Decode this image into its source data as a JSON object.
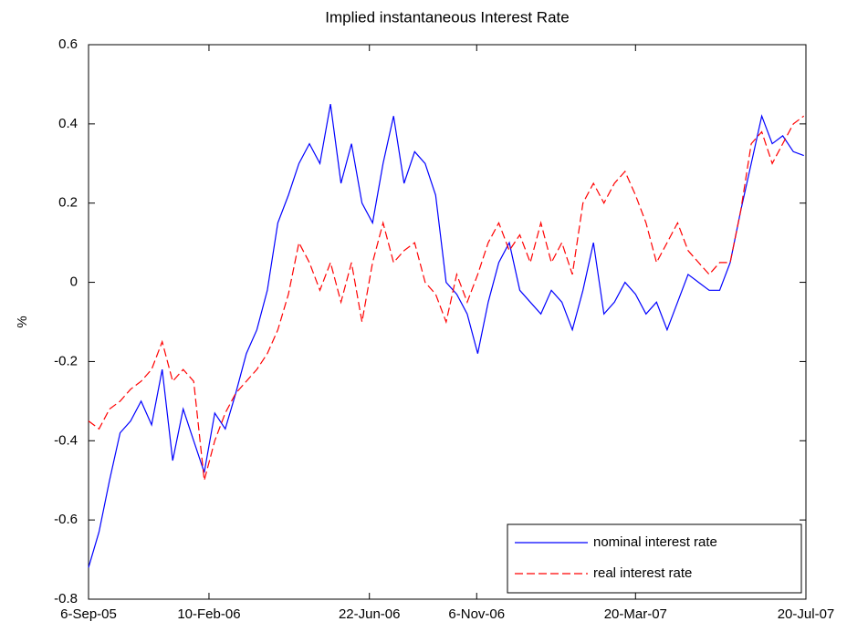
{
  "chart_data": {
    "type": "line",
    "title": "Implied instantaneous Interest Rate",
    "ylabel": "%",
    "x": [
      0,
      10,
      20,
      30,
      40,
      50,
      60,
      70,
      80,
      90,
      100,
      110,
      120,
      130,
      140,
      150,
      160,
      170,
      180,
      190,
      200,
      210,
      220,
      230,
      240,
      250,
      260,
      270,
      280,
      290,
      300,
      310,
      320,
      330,
      340,
      350,
      360,
      370,
      380,
      390,
      400,
      410,
      420,
      430,
      440,
      450,
      460,
      470,
      480,
      490,
      500,
      510,
      520,
      530,
      540,
      550,
      560,
      570,
      580,
      590,
      600,
      610,
      620,
      630,
      640,
      650,
      660,
      670,
      680
    ],
    "xlim": [
      0,
      682
    ],
    "xticks": [
      {
        "value": 0,
        "label": "6-Sep-05"
      },
      {
        "value": 114.5,
        "label": "10-Feb-06"
      },
      {
        "value": 267,
        "label": "22-Jun-06"
      },
      {
        "value": 369,
        "label": "6-Nov-06"
      },
      {
        "value": 520,
        "label": "20-Mar-07"
      },
      {
        "value": 682,
        "label": "20-Jul-07"
      }
    ],
    "ylim": [
      -0.8,
      0.6
    ],
    "yticks": [
      -0.8,
      -0.6,
      -0.4,
      -0.2,
      0,
      0.2,
      0.4,
      0.6
    ],
    "grid": false,
    "legend": "lower right",
    "series": [
      {
        "name": "nominal interest rate",
        "color": "#0000ff",
        "dash": false,
        "values": [
          -0.72,
          -0.63,
          -0.5,
          -0.38,
          -0.35,
          -0.3,
          -0.36,
          -0.22,
          -0.45,
          -0.32,
          -0.4,
          -0.48,
          -0.33,
          -0.37,
          -0.28,
          -0.18,
          -0.12,
          -0.02,
          0.15,
          0.22,
          0.3,
          0.35,
          0.3,
          0.45,
          0.25,
          0.35,
          0.2,
          0.15,
          0.3,
          0.42,
          0.25,
          0.33,
          0.3,
          0.22,
          0.0,
          -0.03,
          -0.08,
          -0.18,
          -0.05,
          0.05,
          0.1,
          -0.02,
          -0.05,
          -0.08,
          -0.02,
          -0.05,
          -0.12,
          -0.02,
          0.1,
          -0.08,
          -0.05,
          0.0,
          -0.03,
          -0.08,
          -0.05,
          -0.12,
          -0.05,
          0.02,
          0.0,
          -0.02,
          -0.02,
          0.05,
          0.18,
          0.3,
          0.42,
          0.35,
          0.37,
          0.33,
          0.32
        ]
      },
      {
        "name": "real interest rate",
        "color": "#ff0000",
        "dash": true,
        "values": [
          -0.35,
          -0.37,
          -0.32,
          -0.3,
          -0.27,
          -0.25,
          -0.22,
          -0.15,
          -0.25,
          -0.22,
          -0.25,
          -0.5,
          -0.4,
          -0.33,
          -0.28,
          -0.25,
          -0.22,
          -0.18,
          -0.12,
          -0.03,
          0.1,
          0.05,
          -0.02,
          0.05,
          -0.05,
          0.05,
          -0.1,
          0.05,
          0.15,
          0.05,
          0.08,
          0.1,
          0.0,
          -0.03,
          -0.1,
          0.02,
          -0.05,
          0.02,
          0.1,
          0.15,
          0.08,
          0.12,
          0.05,
          0.15,
          0.05,
          0.1,
          0.02,
          0.2,
          0.25,
          0.2,
          0.25,
          0.28,
          0.22,
          0.15,
          0.05,
          0.1,
          0.15,
          0.08,
          0.05,
          0.02,
          0.05,
          0.05,
          0.18,
          0.35,
          0.38,
          0.3,
          0.35,
          0.4,
          0.42
        ]
      }
    ]
  }
}
